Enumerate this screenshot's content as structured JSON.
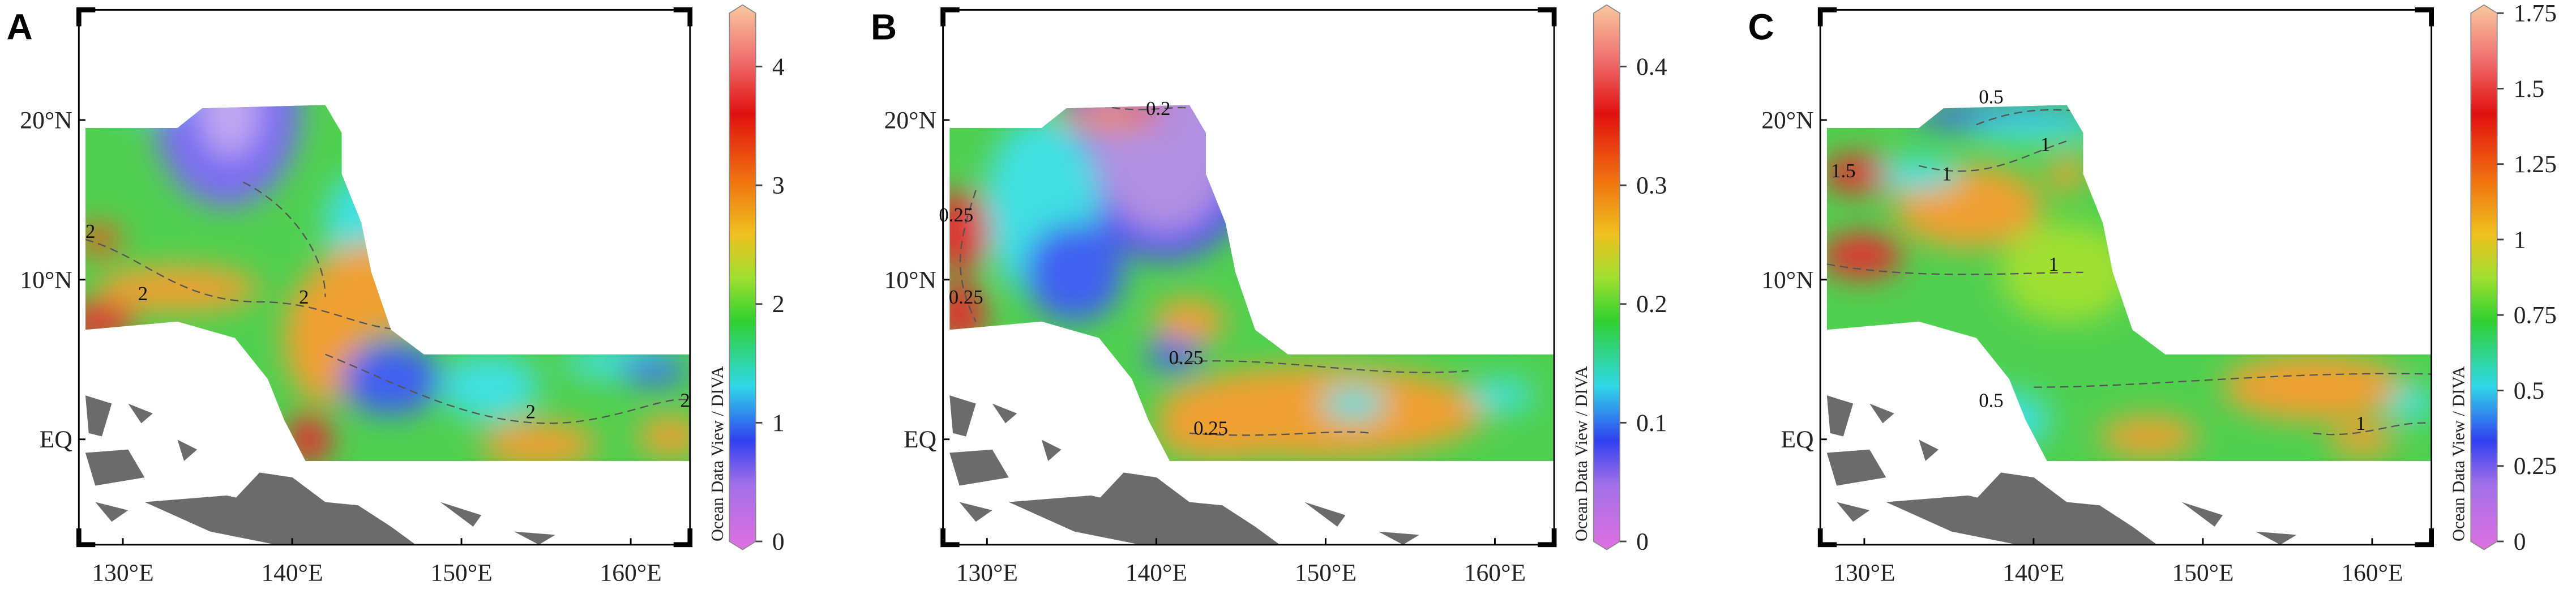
{
  "panels": [
    {
      "label": "A",
      "xlim": [
        127.4,
        163.5
      ],
      "ylim": [
        -6.6,
        26.9
      ],
      "xticks": [
        {
          "value": 130,
          "label": "130°E"
        },
        {
          "value": 140,
          "label": "140°E"
        },
        {
          "value": 150,
          "label": "150°E"
        },
        {
          "value": 160,
          "label": "160°E"
        }
      ],
      "yticks": [
        {
          "value": 20,
          "label": "20°N"
        },
        {
          "value": 10,
          "label": "10°N"
        },
        {
          "value": 0,
          "label": "EQ"
        }
      ],
      "colorbar": {
        "title": "Ocean Data View / DIVA",
        "lim": [
          0,
          4.45
        ],
        "ticks": [
          0,
          1,
          2,
          3,
          4
        ]
      },
      "contour_labels": [
        2,
        2,
        2,
        2,
        2
      ]
    },
    {
      "label": "B",
      "xlim": [
        127.4,
        163.5
      ],
      "ylim": [
        -6.6,
        26.9
      ],
      "xticks": [
        {
          "value": 130,
          "label": "130°E"
        },
        {
          "value": 140,
          "label": "140°E"
        },
        {
          "value": 150,
          "label": "150°E"
        },
        {
          "value": 160,
          "label": "160°E"
        }
      ],
      "yticks": [
        {
          "value": 20,
          "label": "20°N"
        },
        {
          "value": 10,
          "label": "10°N"
        },
        {
          "value": 0,
          "label": "EQ"
        }
      ],
      "colorbar": {
        "title": "Ocean Data View / DIVA",
        "lim": [
          0,
          0.445
        ],
        "ticks": [
          0,
          0.1,
          0.2,
          0.3,
          0.4
        ]
      },
      "contour_labels": [
        0.2,
        0.25,
        0.25,
        0.25,
        0.25
      ]
    },
    {
      "label": "C",
      "xlim": [
        127.4,
        163.5
      ],
      "ylim": [
        -6.6,
        26.9
      ],
      "xticks": [
        {
          "value": 130,
          "label": "130°E"
        },
        {
          "value": 140,
          "label": "140°E"
        },
        {
          "value": 150,
          "label": "150°E"
        },
        {
          "value": 160,
          "label": "160°E"
        }
      ],
      "yticks": [
        {
          "value": 20,
          "label": "20°N"
        },
        {
          "value": 10,
          "label": "10°N"
        },
        {
          "value": 0,
          "label": "EQ"
        }
      ],
      "colorbar": {
        "title": "Ocean Data View / DIVA",
        "lim": [
          0,
          1.75
        ],
        "ticks": [
          0,
          0.25,
          0.5,
          0.75,
          1,
          1.25,
          1.5,
          1.75
        ]
      },
      "contour_labels": [
        0.5,
        1,
        1.5,
        1,
        1,
        0.5,
        1
      ]
    }
  ]
}
